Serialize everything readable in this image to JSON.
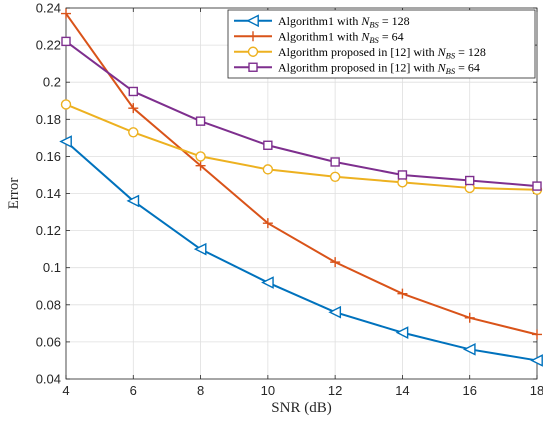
{
  "chart_data": {
    "type": "line",
    "title": "",
    "xlabel": "SNR (dB)",
    "ylabel": "Error",
    "xlim": [
      4,
      18
    ],
    "ylim": [
      0.04,
      0.24
    ],
    "x": [
      4,
      6,
      8,
      10,
      12,
      14,
      16,
      18
    ],
    "x_ticks": [
      "4",
      "6",
      "8",
      "10",
      "12",
      "14",
      "16",
      "18"
    ],
    "y_ticks": [
      "0.04",
      "0.06",
      "0.08",
      "0.1",
      "0.12",
      "0.14",
      "0.16",
      "0.18",
      "0.2",
      "0.22",
      "0.24"
    ],
    "grid": true,
    "legend_position": "top-right",
    "series": [
      {
        "name_text": "Algorithm1 with ",
        "name_var": "N",
        "name_sub": "BS",
        "name_val": " = 128",
        "color": "#0072BD",
        "marker": "triangle-left",
        "values": [
          0.168,
          0.136,
          0.11,
          0.092,
          0.076,
          0.065,
          0.056,
          0.05
        ]
      },
      {
        "name_text": "Algorithm1 with ",
        "name_var": "N",
        "name_sub": "BS",
        "name_val": " = 64",
        "color": "#D95319",
        "marker": "plus",
        "values": [
          0.237,
          0.186,
          0.155,
          0.124,
          0.103,
          0.086,
          0.073,
          0.064
        ]
      },
      {
        "name_text": "Algorithm proposed in [12] with ",
        "name_var": "N",
        "name_sub": "BS",
        "name_val": " = 128",
        "color": "#EDB120",
        "marker": "circle",
        "values": [
          0.188,
          0.173,
          0.16,
          0.153,
          0.149,
          0.146,
          0.143,
          0.142
        ]
      },
      {
        "name_text": "Algorithm proposed in [12] with ",
        "name_var": "N",
        "name_sub": "BS",
        "name_val": " = 64",
        "color": "#7E2F8E",
        "marker": "square",
        "values": [
          0.222,
          0.195,
          0.179,
          0.166,
          0.157,
          0.15,
          0.147,
          0.144
        ]
      }
    ]
  }
}
